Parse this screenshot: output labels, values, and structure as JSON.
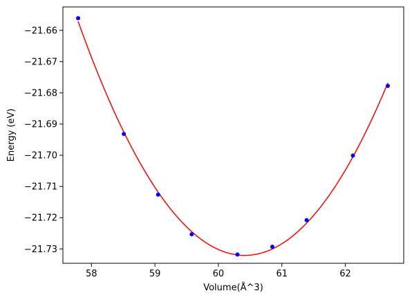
{
  "chart_data": {
    "type": "line",
    "title": "",
    "xlabel": "Volume(Å^3)",
    "ylabel": "Energy (eV)",
    "xlim": [
      57.55,
      62.92
    ],
    "ylim": [
      -21.7346,
      -21.6525
    ],
    "xticks": [
      58,
      59,
      60,
      61,
      62
    ],
    "yticks": [
      -21.66,
      -21.67,
      -21.68,
      -21.69,
      -21.7,
      -21.71,
      -21.72,
      -21.73
    ],
    "x_tick_labels": [
      "58",
      "59",
      "60",
      "61",
      "62"
    ],
    "y_tick_labels": [
      "−21.66",
      "−21.67",
      "−21.68",
      "−21.69",
      "−21.70",
      "−21.71",
      "−21.72",
      "−21.73"
    ],
    "grid": false,
    "series": [
      {
        "kind": "scatter",
        "color": "#0000ff",
        "x": [
          57.79,
          58.51,
          59.05,
          59.58,
          60.3,
          60.85,
          61.39,
          62.12,
          62.67
        ],
        "y": [
          -21.6561,
          -21.6932,
          -21.7126,
          -21.7253,
          -21.7318,
          -21.7293,
          -21.7208,
          -21.7001,
          -21.6778
        ]
      },
      {
        "kind": "line",
        "color": "#ff0000",
        "x": [
          57.79,
          58.51,
          59.05,
          59.58,
          60.3,
          60.85,
          61.39,
          62.12,
          62.67
        ],
        "y": [
          -21.6561,
          -21.6932,
          -21.7126,
          -21.7253,
          -21.7318,
          -21.7293,
          -21.7208,
          -21.7001,
          -21.6778
        ]
      }
    ]
  }
}
